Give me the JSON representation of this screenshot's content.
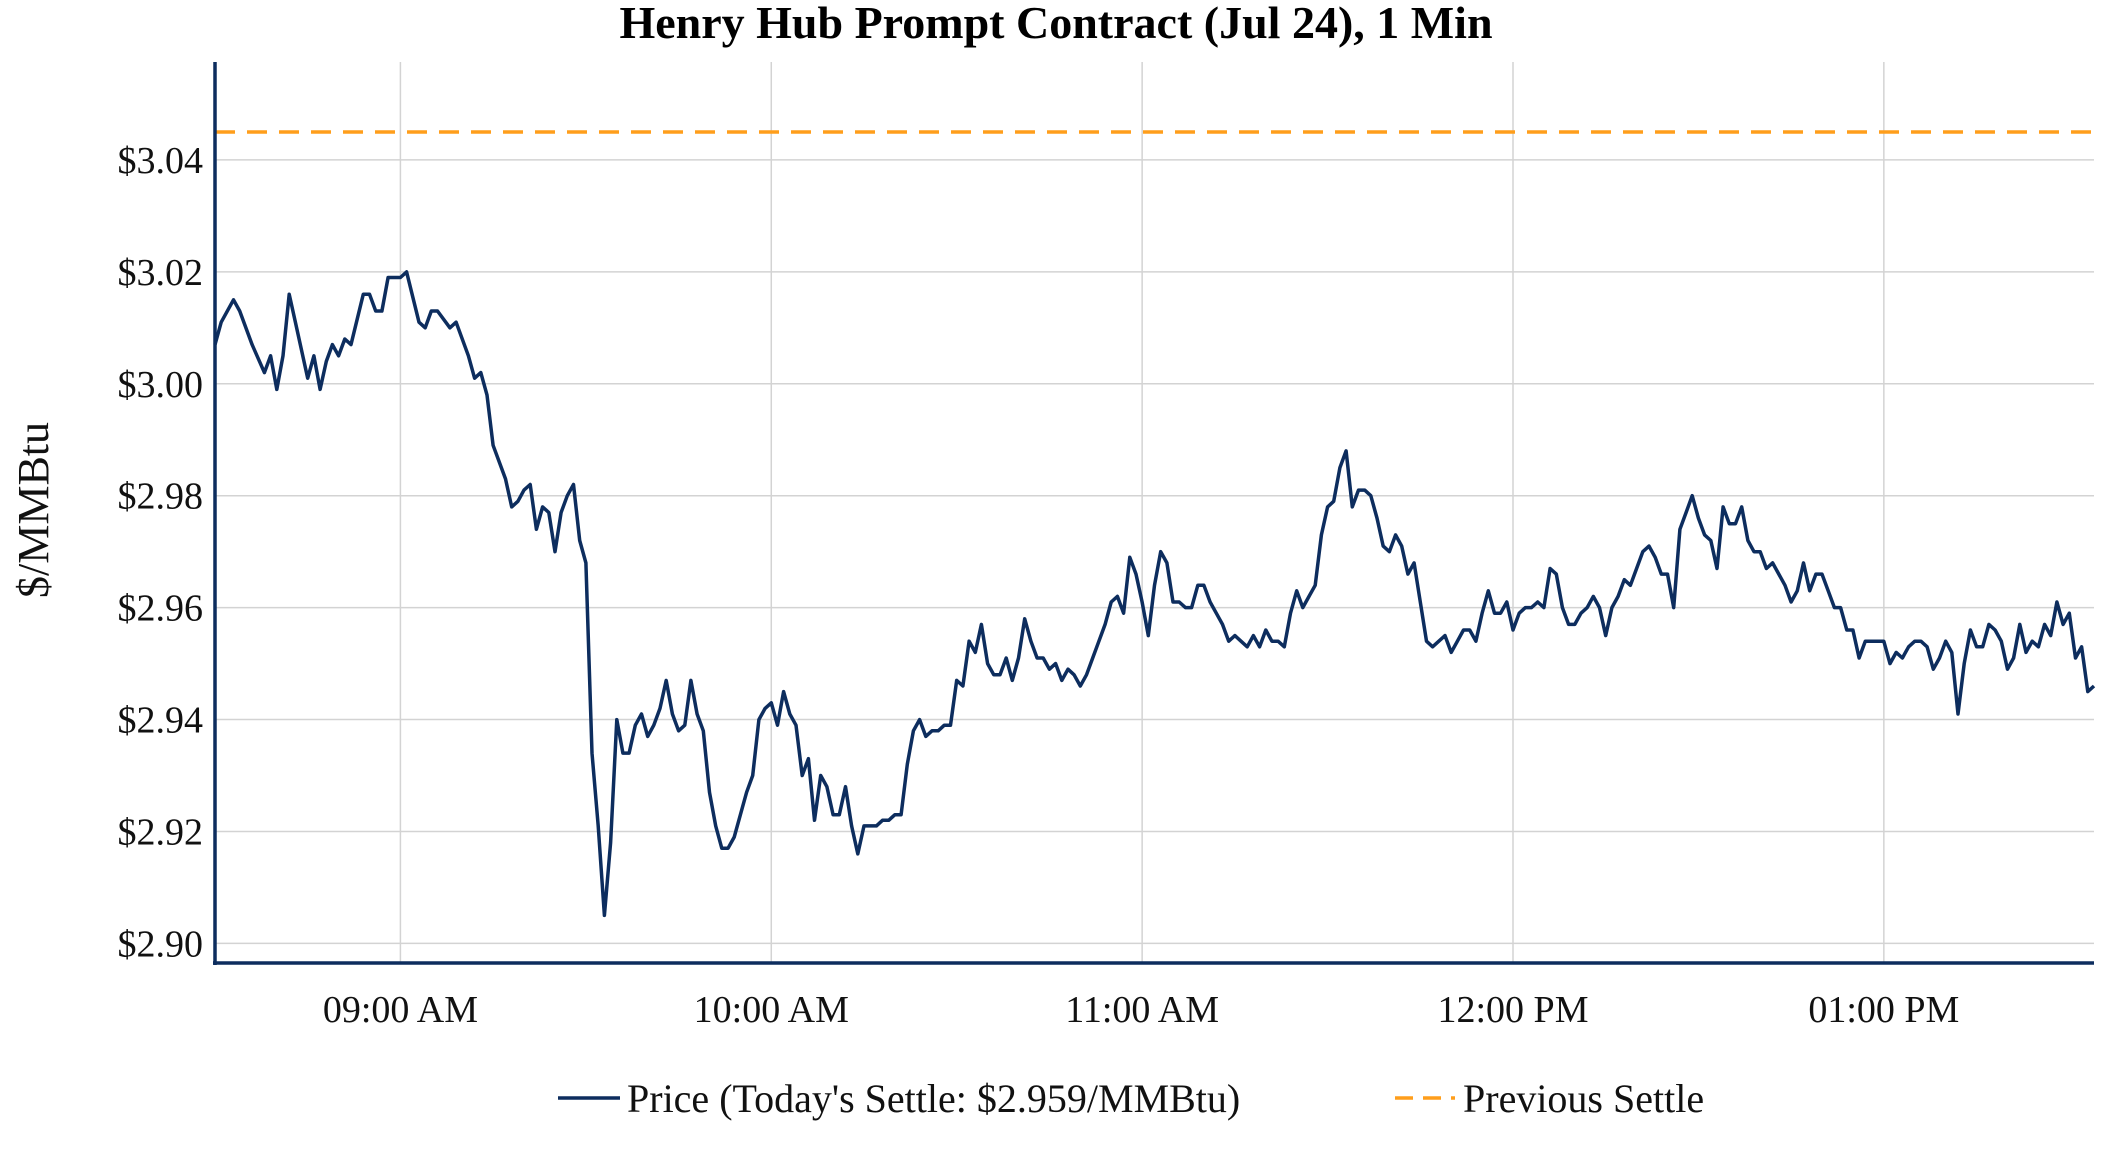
{
  "chart_data": {
    "type": "line",
    "title": "Henry Hub Prompt Contract (Jul 24), 1 Min",
    "xlabel": "",
    "ylabel": "$/MMBtu",
    "x_ticks": [
      "09:00 AM",
      "10:00 AM",
      "11:00 AM",
      "12:00 PM",
      "01:00 PM"
    ],
    "y_ticks": [
      "$2.90",
      "$2.92",
      "$2.94",
      "$2.96",
      "$2.98",
      "$3.00",
      "$3.02",
      "$3.04"
    ],
    "ylim": [
      2.8965,
      3.0575
    ],
    "xlim": [
      "08:30",
      "13:34"
    ],
    "grid": true,
    "legend_position": "bottom",
    "series": [
      {
        "name": "Price (Today's Settle: $2.959/MMBtu)",
        "color": "#0d2d5e",
        "style": "solid",
        "points": [
          [
            "08:30",
            3.007
          ],
          [
            "08:31",
            3.011
          ],
          [
            "08:33",
            3.015
          ],
          [
            "08:34",
            3.013
          ],
          [
            "08:36",
            3.007
          ],
          [
            "08:38",
            3.002
          ],
          [
            "08:39",
            3.005
          ],
          [
            "08:40",
            2.999
          ],
          [
            "08:41",
            3.005
          ],
          [
            "08:42",
            3.016
          ],
          [
            "08:43",
            3.011
          ],
          [
            "08:45",
            3.001
          ],
          [
            "08:46",
            3.005
          ],
          [
            "08:47",
            2.999
          ],
          [
            "08:48",
            3.004
          ],
          [
            "08:49",
            3.007
          ],
          [
            "08:50",
            3.005
          ],
          [
            "08:51",
            3.008
          ],
          [
            "08:52",
            3.007
          ],
          [
            "08:54",
            3.016
          ],
          [
            "08:55",
            3.016
          ],
          [
            "08:56",
            3.013
          ],
          [
            "08:57",
            3.013
          ],
          [
            "08:58",
            3.019
          ],
          [
            "09:00",
            3.019
          ],
          [
            "09:01",
            3.02
          ],
          [
            "09:03",
            3.011
          ],
          [
            "09:04",
            3.01
          ],
          [
            "09:05",
            3.013
          ],
          [
            "09:06",
            3.013
          ],
          [
            "09:08",
            3.01
          ],
          [
            "09:09",
            3.011
          ],
          [
            "09:11",
            3.005
          ],
          [
            "09:12",
            3.001
          ],
          [
            "09:13",
            3.002
          ],
          [
            "09:14",
            2.998
          ],
          [
            "09:15",
            2.989
          ],
          [
            "09:17",
            2.983
          ],
          [
            "09:18",
            2.978
          ],
          [
            "09:19",
            2.979
          ],
          [
            "09:20",
            2.981
          ],
          [
            "09:21",
            2.982
          ],
          [
            "09:22",
            2.974
          ],
          [
            "09:23",
            2.978
          ],
          [
            "09:24",
            2.977
          ],
          [
            "09:25",
            2.97
          ],
          [
            "09:26",
            2.977
          ],
          [
            "09:27",
            2.98
          ],
          [
            "09:28",
            2.982
          ],
          [
            "09:29",
            2.972
          ],
          [
            "09:30",
            2.968
          ],
          [
            "09:31",
            2.934
          ],
          [
            "09:32",
            2.921
          ],
          [
            "09:33",
            2.905
          ],
          [
            "09:34",
            2.918
          ],
          [
            "09:35",
            2.94
          ],
          [
            "09:36",
            2.934
          ],
          [
            "09:37",
            2.934
          ],
          [
            "09:38",
            2.939
          ],
          [
            "09:39",
            2.941
          ],
          [
            "09:40",
            2.937
          ],
          [
            "09:41",
            2.939
          ],
          [
            "09:42",
            2.942
          ],
          [
            "09:43",
            2.947
          ],
          [
            "09:44",
            2.941
          ],
          [
            "09:45",
            2.938
          ],
          [
            "09:46",
            2.939
          ],
          [
            "09:47",
            2.947
          ],
          [
            "09:48",
            2.941
          ],
          [
            "09:49",
            2.938
          ],
          [
            "09:50",
            2.927
          ],
          [
            "09:51",
            2.921
          ],
          [
            "09:52",
            2.917
          ],
          [
            "09:53",
            2.917
          ],
          [
            "09:54",
            2.919
          ],
          [
            "09:55",
            2.923
          ],
          [
            "09:56",
            2.927
          ],
          [
            "09:57",
            2.93
          ],
          [
            "09:58",
            2.94
          ],
          [
            "09:59",
            2.942
          ],
          [
            "10:00",
            2.943
          ],
          [
            "10:01",
            2.939
          ],
          [
            "10:02",
            2.945
          ],
          [
            "10:03",
            2.941
          ],
          [
            "10:04",
            2.939
          ],
          [
            "10:05",
            2.93
          ],
          [
            "10:06",
            2.933
          ],
          [
            "10:07",
            2.922
          ],
          [
            "10:08",
            2.93
          ],
          [
            "10:09",
            2.928
          ],
          [
            "10:10",
            2.923
          ],
          [
            "10:11",
            2.923
          ],
          [
            "10:12",
            2.928
          ],
          [
            "10:13",
            2.921
          ],
          [
            "10:14",
            2.916
          ],
          [
            "10:15",
            2.921
          ],
          [
            "10:16",
            2.921
          ],
          [
            "10:17",
            2.921
          ],
          [
            "10:18",
            2.922
          ],
          [
            "10:19",
            2.922
          ],
          [
            "10:20",
            2.923
          ],
          [
            "10:21",
            2.923
          ],
          [
            "10:22",
            2.932
          ],
          [
            "10:23",
            2.938
          ],
          [
            "10:24",
            2.94
          ],
          [
            "10:25",
            2.937
          ],
          [
            "10:26",
            2.938
          ],
          [
            "10:27",
            2.938
          ],
          [
            "10:28",
            2.939
          ],
          [
            "10:29",
            2.939
          ],
          [
            "10:30",
            2.947
          ],
          [
            "10:31",
            2.946
          ],
          [
            "10:32",
            2.954
          ],
          [
            "10:33",
            2.952
          ],
          [
            "10:34",
            2.957
          ],
          [
            "10:35",
            2.95
          ],
          [
            "10:36",
            2.948
          ],
          [
            "10:37",
            2.948
          ],
          [
            "10:38",
            2.951
          ],
          [
            "10:39",
            2.947
          ],
          [
            "10:40",
            2.951
          ],
          [
            "10:41",
            2.958
          ],
          [
            "10:42",
            2.954
          ],
          [
            "10:43",
            2.951
          ],
          [
            "10:44",
            2.951
          ],
          [
            "10:45",
            2.949
          ],
          [
            "10:46",
            2.95
          ],
          [
            "10:47",
            2.947
          ],
          [
            "10:48",
            2.949
          ],
          [
            "10:49",
            2.948
          ],
          [
            "10:50",
            2.946
          ],
          [
            "10:51",
            2.948
          ],
          [
            "10:52",
            2.951
          ],
          [
            "10:53",
            2.954
          ],
          [
            "10:54",
            2.957
          ],
          [
            "10:55",
            2.961
          ],
          [
            "10:56",
            2.962
          ],
          [
            "10:57",
            2.959
          ],
          [
            "10:58",
            2.969
          ],
          [
            "10:59",
            2.966
          ],
          [
            "11:00",
            2.961
          ],
          [
            "11:01",
            2.955
          ],
          [
            "11:02",
            2.964
          ],
          [
            "11:03",
            2.97
          ],
          [
            "11:04",
            2.968
          ],
          [
            "11:05",
            2.961
          ],
          [
            "11:06",
            2.961
          ],
          [
            "11:07",
            2.96
          ],
          [
            "11:08",
            2.96
          ],
          [
            "11:09",
            2.964
          ],
          [
            "11:10",
            2.964
          ],
          [
            "11:11",
            2.961
          ],
          [
            "11:12",
            2.959
          ],
          [
            "11:13",
            2.957
          ],
          [
            "11:14",
            2.954
          ],
          [
            "11:15",
            2.955
          ],
          [
            "11:16",
            2.954
          ],
          [
            "11:17",
            2.953
          ],
          [
            "11:18",
            2.955
          ],
          [
            "11:19",
            2.953
          ],
          [
            "11:20",
            2.956
          ],
          [
            "11:21",
            2.954
          ],
          [
            "11:22",
            2.954
          ],
          [
            "11:23",
            2.953
          ],
          [
            "11:24",
            2.959
          ],
          [
            "11:25",
            2.963
          ],
          [
            "11:26",
            2.96
          ],
          [
            "11:27",
            2.962
          ],
          [
            "11:28",
            2.964
          ],
          [
            "11:29",
            2.973
          ],
          [
            "11:30",
            2.978
          ],
          [
            "11:31",
            2.979
          ],
          [
            "11:32",
            2.985
          ],
          [
            "11:33",
            2.988
          ],
          [
            "11:34",
            2.978
          ],
          [
            "11:35",
            2.981
          ],
          [
            "11:36",
            2.981
          ],
          [
            "11:37",
            2.98
          ],
          [
            "11:38",
            2.976
          ],
          [
            "11:39",
            2.971
          ],
          [
            "11:40",
            2.97
          ],
          [
            "11:41",
            2.973
          ],
          [
            "11:42",
            2.971
          ],
          [
            "11:43",
            2.966
          ],
          [
            "11:44",
            2.968
          ],
          [
            "11:45",
            2.961
          ],
          [
            "11:46",
            2.954
          ],
          [
            "11:47",
            2.953
          ],
          [
            "11:48",
            2.954
          ],
          [
            "11:49",
            2.955
          ],
          [
            "11:50",
            2.952
          ],
          [
            "11:51",
            2.954
          ],
          [
            "11:52",
            2.956
          ],
          [
            "11:53",
            2.956
          ],
          [
            "11:54",
            2.954
          ],
          [
            "11:55",
            2.959
          ],
          [
            "11:56",
            2.963
          ],
          [
            "11:57",
            2.959
          ],
          [
            "11:58",
            2.959
          ],
          [
            "11:59",
            2.961
          ],
          [
            "12:00",
            2.956
          ],
          [
            "12:01",
            2.959
          ],
          [
            "12:02",
            2.96
          ],
          [
            "12:03",
            2.96
          ],
          [
            "12:04",
            2.961
          ],
          [
            "12:05",
            2.96
          ],
          [
            "12:06",
            2.967
          ],
          [
            "12:07",
            2.966
          ],
          [
            "12:08",
            2.96
          ],
          [
            "12:09",
            2.957
          ],
          [
            "12:10",
            2.957
          ],
          [
            "12:11",
            2.959
          ],
          [
            "12:12",
            2.96
          ],
          [
            "12:13",
            2.962
          ],
          [
            "12:14",
            2.96
          ],
          [
            "12:15",
            2.955
          ],
          [
            "12:16",
            2.96
          ],
          [
            "12:17",
            2.962
          ],
          [
            "12:18",
            2.965
          ],
          [
            "12:19",
            2.964
          ],
          [
            "12:20",
            2.967
          ],
          [
            "12:21",
            2.97
          ],
          [
            "12:22",
            2.971
          ],
          [
            "12:23",
            2.969
          ],
          [
            "12:24",
            2.966
          ],
          [
            "12:25",
            2.966
          ],
          [
            "12:26",
            2.96
          ],
          [
            "12:27",
            2.974
          ],
          [
            "12:28",
            2.977
          ],
          [
            "12:29",
            2.98
          ],
          [
            "12:30",
            2.976
          ],
          [
            "12:31",
            2.973
          ],
          [
            "12:32",
            2.972
          ],
          [
            "12:33",
            2.967
          ],
          [
            "12:34",
            2.978
          ],
          [
            "12:35",
            2.975
          ],
          [
            "12:36",
            2.975
          ],
          [
            "12:37",
            2.978
          ],
          [
            "12:38",
            2.972
          ],
          [
            "12:39",
            2.97
          ],
          [
            "12:40",
            2.97
          ],
          [
            "12:41",
            2.967
          ],
          [
            "12:42",
            2.968
          ],
          [
            "12:43",
            2.966
          ],
          [
            "12:44",
            2.964
          ],
          [
            "12:45",
            2.961
          ],
          [
            "12:46",
            2.963
          ],
          [
            "12:47",
            2.968
          ],
          [
            "12:48",
            2.963
          ],
          [
            "12:49",
            2.966
          ],
          [
            "12:50",
            2.966
          ],
          [
            "12:51",
            2.963
          ],
          [
            "12:52",
            2.96
          ],
          [
            "12:53",
            2.96
          ],
          [
            "12:54",
            2.956
          ],
          [
            "12:55",
            2.956
          ],
          [
            "12:56",
            2.951
          ],
          [
            "12:57",
            2.954
          ],
          [
            "12:58",
            2.954
          ],
          [
            "12:59",
            2.954
          ],
          [
            "13:00",
            2.954
          ],
          [
            "13:01",
            2.95
          ],
          [
            "13:02",
            2.952
          ],
          [
            "13:03",
            2.951
          ],
          [
            "13:04",
            2.953
          ],
          [
            "13:05",
            2.954
          ],
          [
            "13:06",
            2.954
          ],
          [
            "13:07",
            2.953
          ],
          [
            "13:08",
            2.949
          ],
          [
            "13:09",
            2.951
          ],
          [
            "13:10",
            2.954
          ],
          [
            "13:11",
            2.952
          ],
          [
            "13:12",
            2.941
          ],
          [
            "13:13",
            2.95
          ],
          [
            "13:14",
            2.956
          ],
          [
            "13:15",
            2.953
          ],
          [
            "13:16",
            2.953
          ],
          [
            "13:17",
            2.957
          ],
          [
            "13:18",
            2.956
          ],
          [
            "13:19",
            2.954
          ],
          [
            "13:20",
            2.949
          ],
          [
            "13:21",
            2.951
          ],
          [
            "13:22",
            2.957
          ],
          [
            "13:23",
            2.952
          ],
          [
            "13:24",
            2.954
          ],
          [
            "13:25",
            2.953
          ],
          [
            "13:26",
            2.957
          ],
          [
            "13:27",
            2.955
          ],
          [
            "13:28",
            2.961
          ],
          [
            "13:29",
            2.957
          ],
          [
            "13:30",
            2.959
          ],
          [
            "13:31",
            2.951
          ],
          [
            "13:32",
            2.953
          ],
          [
            "13:33",
            2.945
          ],
          [
            "13:34",
            2.946
          ]
        ]
      },
      {
        "name": "Previous Settle",
        "color": "#ff9e1b",
        "style": "dashed",
        "value": 3.045
      }
    ]
  }
}
